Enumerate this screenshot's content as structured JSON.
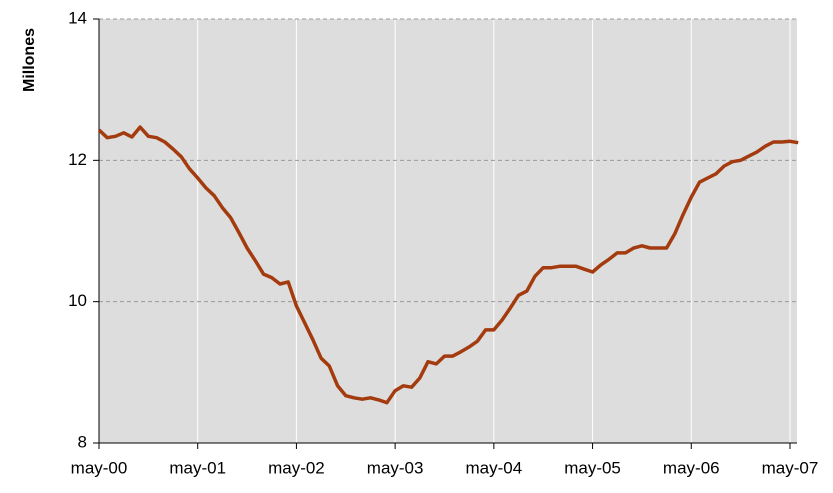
{
  "chart_data": {
    "type": "line",
    "y_label": "Millones",
    "categories": [
      "may-00",
      null,
      null,
      null,
      null,
      null,
      null,
      null,
      null,
      null,
      null,
      null,
      "may-01",
      null,
      null,
      null,
      null,
      null,
      null,
      null,
      null,
      null,
      null,
      null,
      "may-02",
      null,
      null,
      null,
      null,
      null,
      null,
      null,
      null,
      null,
      null,
      null,
      "may-03",
      null,
      null,
      null,
      null,
      null,
      null,
      null,
      null,
      null,
      null,
      null,
      "may-04",
      null,
      null,
      null,
      null,
      null,
      null,
      null,
      null,
      null,
      null,
      null,
      "may-05",
      null,
      null,
      null,
      null,
      null,
      null,
      null,
      null,
      null,
      null,
      null,
      "may-06",
      null,
      null,
      null,
      null,
      null,
      null,
      null,
      null,
      null,
      null,
      null,
      "may-07",
      null
    ],
    "series": [
      {
        "color": "#a33b0f",
        "values": [
          12.43,
          12.32,
          12.34,
          12.39,
          12.33,
          12.47,
          12.34,
          12.32,
          12.26,
          12.16,
          12.05,
          11.88,
          11.75,
          11.61,
          11.5,
          11.33,
          11.19,
          10.98,
          10.76,
          10.58,
          10.39,
          10.34,
          10.25,
          10.28,
          9.94,
          9.7,
          9.46,
          9.2,
          9.09,
          8.81,
          8.67,
          8.64,
          8.62,
          8.64,
          8.61,
          8.57,
          8.74,
          8.81,
          8.79,
          8.92,
          9.15,
          9.12,
          9.23,
          9.23,
          9.29,
          9.36,
          9.44,
          9.6,
          9.6,
          9.74,
          9.91,
          10.09,
          10.15,
          10.36,
          10.48,
          10.48,
          10.5,
          10.5,
          10.5,
          10.46,
          10.42,
          10.52,
          10.6,
          10.69,
          10.69,
          10.76,
          10.79,
          10.76,
          10.76,
          10.76,
          10.96,
          11.23,
          11.48,
          11.69,
          11.75,
          11.81,
          11.92,
          11.98,
          12.0,
          12.06,
          12.12,
          12.2,
          12.26,
          12.26,
          12.27,
          12.25
        ]
      }
    ],
    "ylim": [
      8,
      14
    ],
    "yticks": [
      8,
      10,
      12,
      14
    ],
    "grid": true
  }
}
